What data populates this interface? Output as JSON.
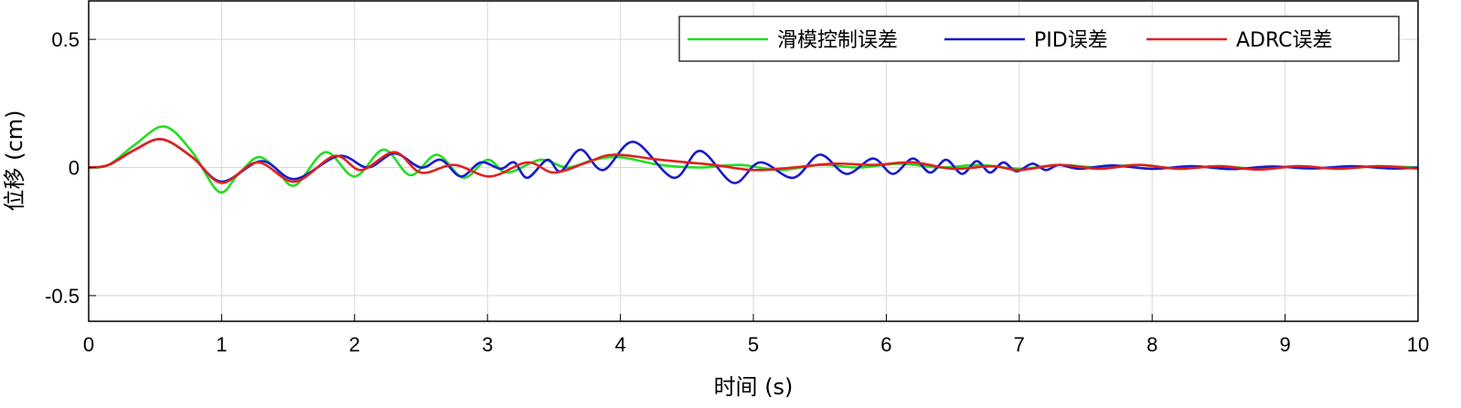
{
  "chart_data": {
    "type": "line",
    "title": "",
    "xlabel": "时间 (s)",
    "ylabel": "位移 (cm)",
    "xlim": [
      0,
      10
    ],
    "ylim": [
      -0.6,
      0.65
    ],
    "xticks": [
      0,
      1,
      2,
      3,
      4,
      5,
      6,
      7,
      8,
      9,
      10
    ],
    "xtick_labels": [
      "0",
      "1",
      "2",
      "3",
      "4",
      "5",
      "6",
      "7",
      "8",
      "9",
      "10"
    ],
    "yticks": [
      0.5,
      0,
      -0.5
    ],
    "ytick_labels": [
      "0.5",
      "0",
      "-0.5"
    ],
    "grid": true,
    "legend_placement": "top-right",
    "series": [
      {
        "name": "滑模控制误差",
        "color": "#22dd22",
        "points": [
          [
            0,
            0
          ],
          [
            0.15,
            0.01
          ],
          [
            0.35,
            0.09
          ],
          [
            0.57,
            0.16
          ],
          [
            0.78,
            0.06
          ],
          [
            0.98,
            -0.095
          ],
          [
            1.12,
            -0.03
          ],
          [
            1.27,
            0.04
          ],
          [
            1.4,
            0.0
          ],
          [
            1.55,
            -0.07
          ],
          [
            1.78,
            0.06
          ],
          [
            2.0,
            -0.035
          ],
          [
            2.22,
            0.07
          ],
          [
            2.42,
            -0.03
          ],
          [
            2.62,
            0.05
          ],
          [
            2.82,
            -0.04
          ],
          [
            3.0,
            0.03
          ],
          [
            3.15,
            -0.02
          ],
          [
            3.4,
            0.03
          ],
          [
            3.6,
            0.0
          ],
          [
            3.8,
            0.03
          ],
          [
            4.0,
            0.04
          ],
          [
            4.3,
            0.01
          ],
          [
            4.6,
            0.0
          ],
          [
            4.9,
            0.01
          ],
          [
            5.2,
            -0.01
          ],
          [
            5.5,
            0.01
          ],
          [
            5.8,
            0.0
          ],
          [
            6.1,
            0.015
          ],
          [
            6.4,
            0.0
          ],
          [
            6.7,
            0.01
          ],
          [
            7.0,
            -0.005
          ],
          [
            7.3,
            0.01
          ],
          [
            7.6,
            0.0
          ],
          [
            7.9,
            0.01
          ],
          [
            8.2,
            -0.005
          ],
          [
            8.5,
            0.005
          ],
          [
            8.8,
            -0.005
          ],
          [
            9.1,
            0.005
          ],
          [
            9.4,
            -0.005
          ],
          [
            9.7,
            0.005
          ],
          [
            10,
            0
          ]
        ]
      },
      {
        "name": "PID误差",
        "color": "#1a1acc",
        "points": [
          [
            0,
            0
          ],
          [
            0.15,
            0.01
          ],
          [
            0.35,
            0.07
          ],
          [
            0.55,
            0.11
          ],
          [
            0.78,
            0.04
          ],
          [
            1.0,
            -0.055
          ],
          [
            1.3,
            0.025
          ],
          [
            1.55,
            -0.045
          ],
          [
            1.88,
            0.045
          ],
          [
            2.1,
            0.0
          ],
          [
            2.3,
            0.055
          ],
          [
            2.5,
            0.0
          ],
          [
            2.65,
            0.03
          ],
          [
            2.8,
            -0.035
          ],
          [
            2.95,
            0.02
          ],
          [
            3.1,
            -0.005
          ],
          [
            3.2,
            0.02
          ],
          [
            3.3,
            -0.04
          ],
          [
            3.45,
            0.03
          ],
          [
            3.55,
            -0.015
          ],
          [
            3.7,
            0.07
          ],
          [
            3.87,
            -0.01
          ],
          [
            4.1,
            0.1
          ],
          [
            4.4,
            -0.04
          ],
          [
            4.6,
            0.065
          ],
          [
            4.85,
            -0.06
          ],
          [
            5.05,
            0.02
          ],
          [
            5.3,
            -0.04
          ],
          [
            5.5,
            0.05
          ],
          [
            5.7,
            -0.025
          ],
          [
            5.9,
            0.035
          ],
          [
            6.05,
            -0.025
          ],
          [
            6.2,
            0.035
          ],
          [
            6.33,
            -0.02
          ],
          [
            6.45,
            0.03
          ],
          [
            6.57,
            -0.025
          ],
          [
            6.68,
            0.025
          ],
          [
            6.78,
            -0.02
          ],
          [
            6.88,
            0.02
          ],
          [
            6.98,
            -0.015
          ],
          [
            7.1,
            0.015
          ],
          [
            7.2,
            -0.01
          ],
          [
            7.3,
            0.01
          ],
          [
            7.45,
            -0.005
          ],
          [
            7.7,
            0.008
          ],
          [
            8.0,
            -0.005
          ],
          [
            8.3,
            0.005
          ],
          [
            8.6,
            -0.006
          ],
          [
            8.9,
            0.004
          ],
          [
            9.2,
            -0.004
          ],
          [
            9.5,
            0.005
          ],
          [
            9.8,
            -0.004
          ],
          [
            10,
            0
          ]
        ]
      },
      {
        "name": "ADRC误差",
        "color": "#e02020",
        "points": [
          [
            0,
            0
          ],
          [
            0.15,
            0.01
          ],
          [
            0.35,
            0.07
          ],
          [
            0.55,
            0.11
          ],
          [
            0.78,
            0.04
          ],
          [
            1.0,
            -0.06
          ],
          [
            1.27,
            0.02
          ],
          [
            1.55,
            -0.055
          ],
          [
            1.85,
            0.045
          ],
          [
            2.05,
            -0.01
          ],
          [
            2.3,
            0.06
          ],
          [
            2.5,
            -0.02
          ],
          [
            2.75,
            0.01
          ],
          [
            3.02,
            -0.035
          ],
          [
            3.3,
            0.02
          ],
          [
            3.5,
            -0.02
          ],
          [
            3.75,
            0.02
          ],
          [
            3.95,
            0.05
          ],
          [
            4.3,
            0.03
          ],
          [
            4.7,
            0.01
          ],
          [
            5.0,
            -0.01
          ],
          [
            5.3,
            0.0
          ],
          [
            5.6,
            0.015
          ],
          [
            5.9,
            0.01
          ],
          [
            6.2,
            0.02
          ],
          [
            6.5,
            -0.005
          ],
          [
            6.8,
            0.005
          ],
          [
            7.0,
            -0.01
          ],
          [
            7.3,
            0.01
          ],
          [
            7.6,
            -0.005
          ],
          [
            7.9,
            0.01
          ],
          [
            8.2,
            -0.005
          ],
          [
            8.5,
            0.005
          ],
          [
            8.8,
            -0.008
          ],
          [
            9.1,
            0.005
          ],
          [
            9.4,
            -0.005
          ],
          [
            9.7,
            0.005
          ],
          [
            10,
            -0.005
          ]
        ]
      }
    ]
  }
}
